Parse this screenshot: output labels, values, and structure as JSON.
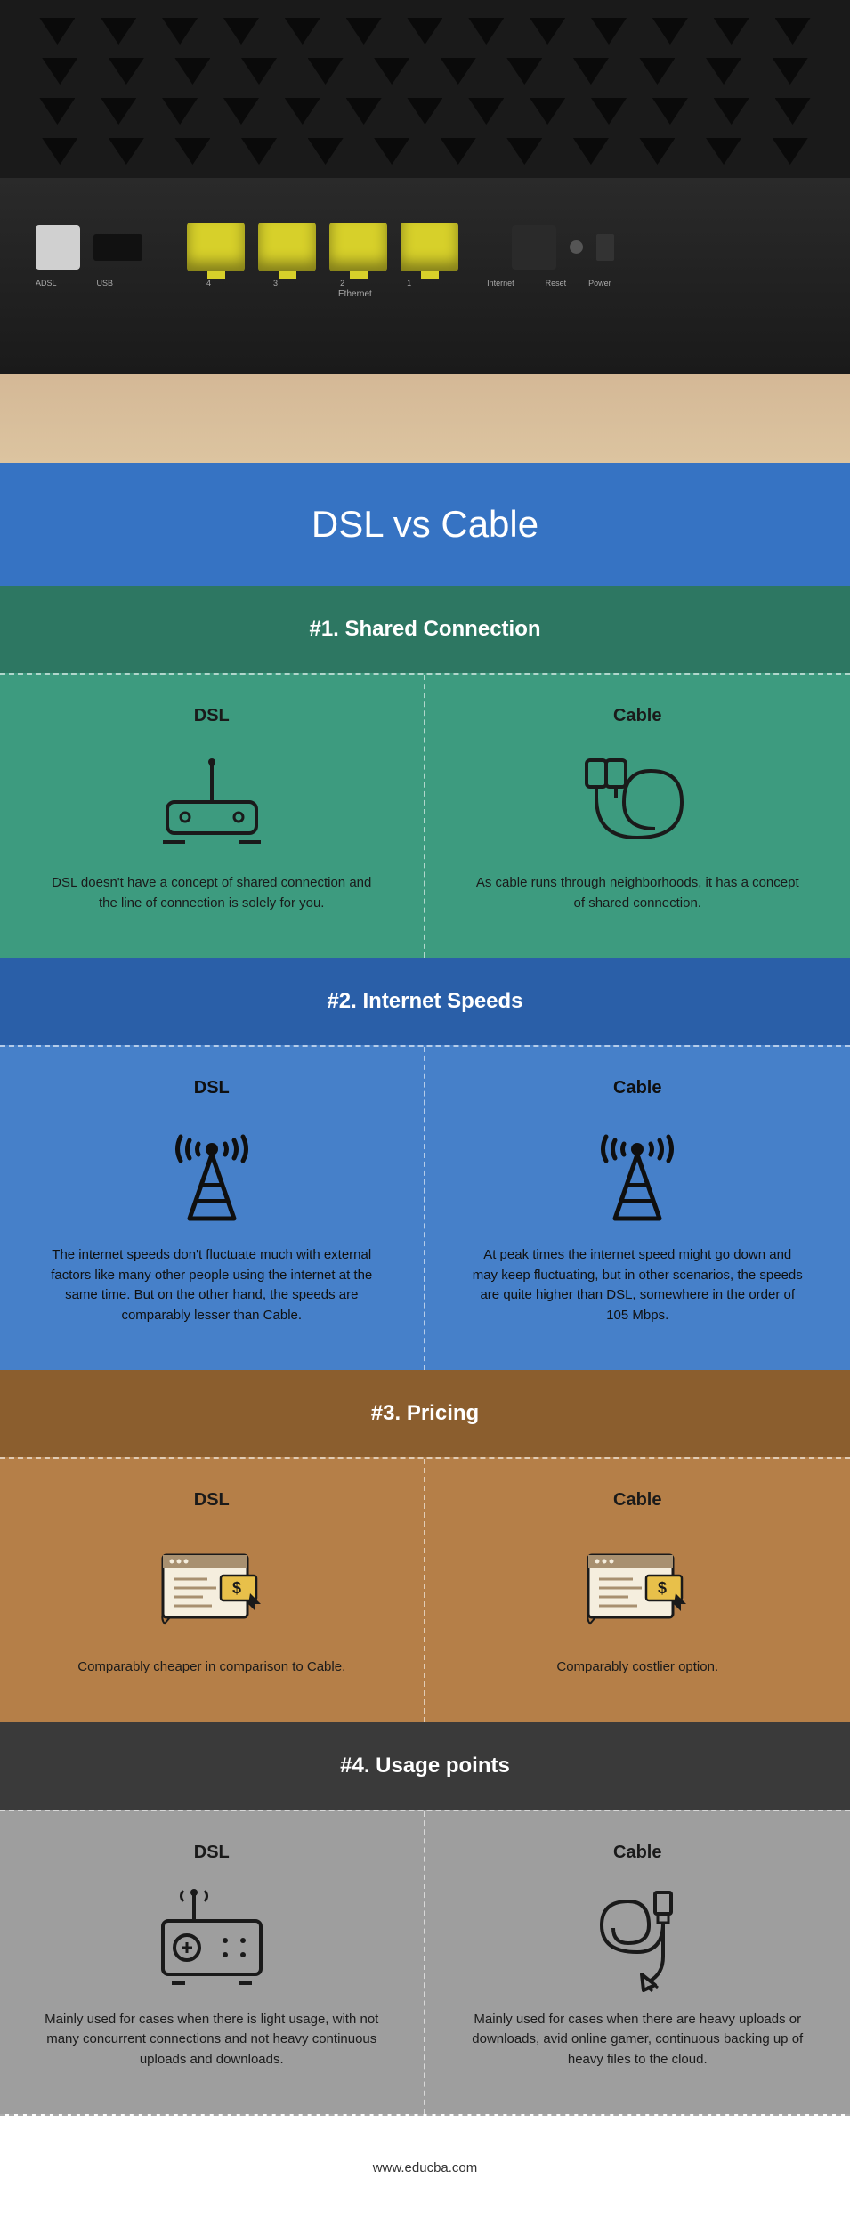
{
  "hero": {
    "port_labels": [
      "ADSL",
      "USB",
      "4",
      "3",
      "2",
      "1",
      "Internet",
      "Reset",
      "Power"
    ],
    "ethernet_label": "Ethernet"
  },
  "title": "DSL vs Cable",
  "title_bg": "#3673c3",
  "sections": [
    {
      "header": "#1. Shared Connection",
      "header_bg": "#2d7762",
      "body_bg": "#3d9b7f",
      "text_color": "#1a1a1a",
      "left": {
        "title": "DSL",
        "text": "DSL doesn't have a concept of shared connection and the line of connection is solely for you.",
        "icon": "dsl-modem"
      },
      "right": {
        "title": "Cable",
        "text": "As cable runs through neighborhoods, it has a concept of shared connection.",
        "icon": "cable-coil"
      }
    },
    {
      "header": "#2. Internet Speeds",
      "header_bg": "#2a5fa8",
      "body_bg": "#4680c9",
      "text_color": "#0f0f0f",
      "left": {
        "title": "DSL",
        "text": "The internet speeds don't fluctuate much with external factors like many other people using the internet at the same time. But on the other hand, the speeds are comparably lesser than Cable.",
        "icon": "tower"
      },
      "right": {
        "title": "Cable",
        "text": "At peak times the internet speed might go down and may keep fluctuating, but in other scenarios, the speeds are quite higher than DSL, somewhere in the order of 105 Mbps.",
        "icon": "tower"
      }
    },
    {
      "header": "#3. Pricing",
      "header_bg": "#8b5e2e",
      "body_bg": "#b57f48",
      "text_color": "#1a1a1a",
      "left": {
        "title": "DSL",
        "text": "Comparably cheaper in comparison to Cable.",
        "icon": "pricing"
      },
      "right": {
        "title": "Cable",
        "text": "Comparably costlier option.",
        "icon": "pricing"
      }
    },
    {
      "header": "#4. Usage points",
      "header_bg": "#3a3a3a",
      "body_bg": "#9e9e9e",
      "text_color": "#1a1a1a",
      "left": {
        "title": "DSL",
        "text": "Mainly used for cases when there is light usage, with not many concurrent connections and not heavy continuous uploads and downloads.",
        "icon": "router-usage"
      },
      "right": {
        "title": "Cable",
        "text": "Mainly used for cases when there are heavy uploads or downloads, avid online gamer, continuous backing up of heavy files to the cloud.",
        "icon": "plug-cable"
      }
    }
  ],
  "footer": "www.educba.com"
}
